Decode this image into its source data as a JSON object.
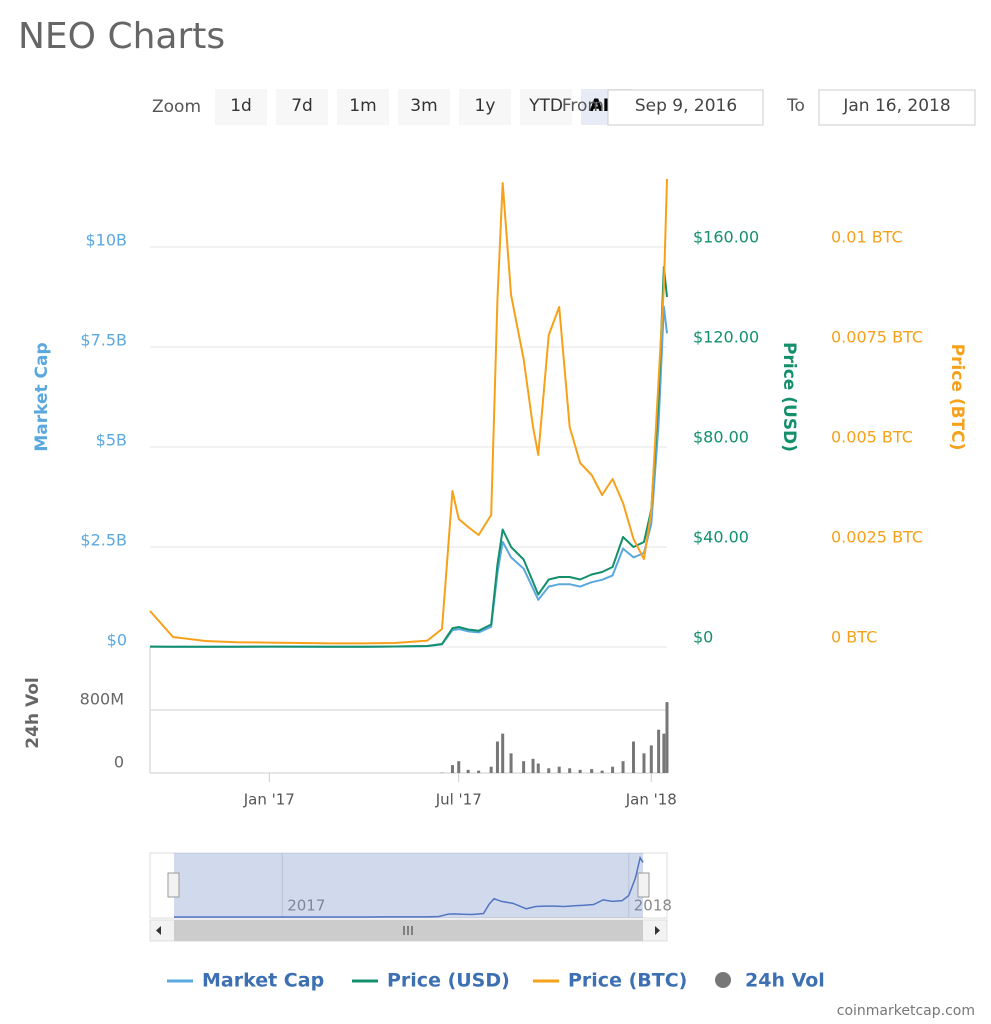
{
  "title": "NEO Charts",
  "range_selector": {
    "zoom_label": "Zoom",
    "buttons": [
      "1d",
      "7d",
      "1m",
      "3m",
      "1y",
      "YTD",
      "ALL"
    ],
    "selected": "ALL",
    "from_label": "From",
    "from": "Sep 9, 2016",
    "to_label": "To",
    "to": "Jan 16, 2018"
  },
  "chart_data": [
    {
      "type": "line",
      "x": [
        "2016-09-09",
        "2016-10-01",
        "2016-11-01",
        "2016-12-01",
        "2017-01-01",
        "2017-02-01",
        "2017-03-01",
        "2017-04-01",
        "2017-05-01",
        "2017-06-01",
        "2017-06-15",
        "2017-06-25",
        "2017-07-01",
        "2017-07-10",
        "2017-07-20",
        "2017-08-01",
        "2017-08-07",
        "2017-08-12",
        "2017-08-20",
        "2017-09-01",
        "2017-09-10",
        "2017-09-15",
        "2017-09-25",
        "2017-10-05",
        "2017-10-15",
        "2017-10-25",
        "2017-11-05",
        "2017-11-15",
        "2017-11-25",
        "2017-12-05",
        "2017-12-15",
        "2017-12-25",
        "2018-01-01",
        "2018-01-08",
        "2018-01-13",
        "2018-01-16"
      ],
      "xlim": [
        "2016-09-09",
        "2018-01-16"
      ],
      "xticks": [
        {
          "value": "2017-01-01",
          "label": "Jan '17"
        },
        {
          "value": "2017-07-01",
          "label": "Jul '17"
        },
        {
          "value": "2018-01-01",
          "label": "Jan '18"
        }
      ],
      "y_label": "Market Cap",
      "ylim": [
        0,
        12500000000
      ],
      "yticks": [
        {
          "value": 0,
          "label": "$0"
        },
        {
          "value": 2500000000,
          "label": "$2.5B"
        },
        {
          "value": 5000000000,
          "label": "$5B"
        },
        {
          "value": 7500000000,
          "label": "$7.5B"
        },
        {
          "value": 10000000000,
          "label": "$10B"
        }
      ],
      "y2_label": "Price (USD)",
      "y2lim": [
        0,
        200
      ],
      "y2ticks": [
        {
          "value": 0,
          "label": "$0"
        },
        {
          "value": 40,
          "label": "$40.00"
        },
        {
          "value": 80,
          "label": "$80.00"
        },
        {
          "value": 120,
          "label": "$120.00"
        },
        {
          "value": 160,
          "label": "$160.00"
        }
      ],
      "y3_label": "Price (BTC)",
      "y3lim": [
        0,
        0.0125
      ],
      "y3ticks": [
        {
          "value": 0,
          "label": "0 BTC"
        },
        {
          "value": 0.0025,
          "label": "0.0025 BTC"
        },
        {
          "value": 0.005,
          "label": "0.005 BTC"
        },
        {
          "value": 0.0075,
          "label": "0.0075 BTC"
        },
        {
          "value": 0.01,
          "label": "0.01 BTC"
        }
      ],
      "grid": true,
      "series": [
        {
          "name": "Market Cap",
          "color": "#5ba8df",
          "axis": "y",
          "values": [
            8400000,
            5600000,
            5600000,
            6700000,
            8400000,
            7300000,
            6700000,
            6700000,
            11200000,
            22400000,
            67000000,
            420000000,
            448000000,
            392000000,
            364000000,
            504000000,
            1850000000,
            2630000000,
            2240000000,
            1960000000,
            1460000000,
            1180000000,
            1510000000,
            1570000000,
            1570000000,
            1510000000,
            1620000000,
            1680000000,
            1790000000,
            2460000000,
            2240000000,
            2350000000,
            3080000000,
            5600000000,
            8510000000,
            7840000000
          ]
        },
        {
          "name": "Price (USD)",
          "color": "#13906b",
          "axis": "y2",
          "values": [
            0.15,
            0.1,
            0.1,
            0.12,
            0.15,
            0.13,
            0.12,
            0.12,
            0.2,
            0.4,
            1.2,
            7.5,
            8,
            7,
            6.5,
            9,
            33,
            47,
            40,
            35,
            26,
            21,
            27,
            28,
            28,
            27,
            29,
            30,
            32,
            44,
            40,
            42,
            55,
            100,
            152,
            140
          ]
        },
        {
          "name": "Price (BTC)",
          "color": "#f7a11a",
          "axis": "y3",
          "values": [
            0.0009,
            0.00025,
            0.00015,
            0.00012,
            0.00011,
            0.0001,
            9e-05,
            9e-05,
            0.0001,
            0.00016,
            0.00045,
            0.0039,
            0.0032,
            0.003,
            0.0028,
            0.0033,
            0.0087,
            0.0116,
            0.0088,
            0.0072,
            0.0055,
            0.0048,
            0.0078,
            0.0085,
            0.0055,
            0.0046,
            0.0043,
            0.0038,
            0.0042,
            0.0036,
            0.0027,
            0.0022,
            0.0034,
            0.0067,
            0.009,
            0.0117
          ]
        }
      ]
    },
    {
      "type": "bar",
      "x": [
        "2016-09-09",
        "2016-10-01",
        "2016-11-01",
        "2016-12-01",
        "2017-01-01",
        "2017-02-01",
        "2017-03-01",
        "2017-04-01",
        "2017-05-01",
        "2017-06-01",
        "2017-06-15",
        "2017-06-25",
        "2017-07-01",
        "2017-07-10",
        "2017-07-20",
        "2017-08-01",
        "2017-08-07",
        "2017-08-12",
        "2017-08-20",
        "2017-09-01",
        "2017-09-10",
        "2017-09-15",
        "2017-09-25",
        "2017-10-05",
        "2017-10-15",
        "2017-10-25",
        "2017-11-05",
        "2017-11-15",
        "2017-11-25",
        "2017-12-05",
        "2017-12-15",
        "2017-12-25",
        "2018-01-01",
        "2018-01-08",
        "2018-01-13",
        "2018-01-16"
      ],
      "xlim": [
        "2016-09-09",
        "2018-01-16"
      ],
      "y_label": "24h Vol",
      "ylim": [
        0,
        1600000000
      ],
      "yticks": [
        0,
        {
          "value": 800000000,
          "label": "800M"
        }
      ],
      "grid": true,
      "series": [
        {
          "name": "24h Vol",
          "color": "#777777",
          "values": [
            0,
            0,
            0,
            0,
            0,
            0,
            0,
            0,
            0,
            0,
            5000000,
            100000000,
            150000000,
            40000000,
            30000000,
            80000000,
            400000000,
            500000000,
            250000000,
            150000000,
            180000000,
            120000000,
            60000000,
            80000000,
            60000000,
            40000000,
            50000000,
            30000000,
            80000000,
            150000000,
            400000000,
            250000000,
            350000000,
            550000000,
            500000000,
            900000000
          ]
        }
      ]
    },
    {
      "type": "navigator",
      "xlim": [
        "2016-09-09",
        "2018-01-16"
      ],
      "xticks": [
        {
          "value": "2017-01-01",
          "label": "2017"
        },
        {
          "value": "2018-01-01",
          "label": "2018"
        }
      ]
    }
  ],
  "credit": "coinmarketcap.com"
}
